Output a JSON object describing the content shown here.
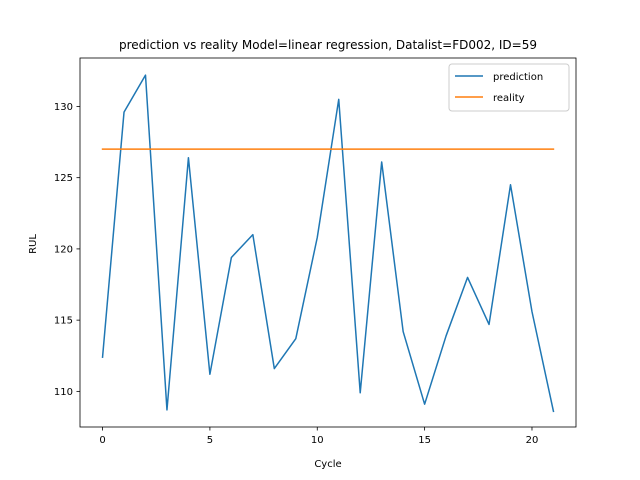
{
  "chart_data": {
    "type": "line",
    "title": "prediction vs reality Model=linear regression, Datalist=FD002, ID=59",
    "xlabel": "Cycle",
    "ylabel": "RUL",
    "xlim": [
      -1.05,
      22.05
    ],
    "ylim": [
      107.5,
      133.4
    ],
    "xticks": [
      0,
      5,
      10,
      15,
      20
    ],
    "yticks": [
      110,
      115,
      120,
      125,
      130
    ],
    "grid": false,
    "legend": "top-right",
    "x": [
      0,
      1,
      2,
      3,
      4,
      5,
      6,
      7,
      8,
      9,
      10,
      11,
      12,
      13,
      14,
      15,
      16,
      17,
      18,
      19,
      20,
      21
    ],
    "series": [
      {
        "name": "prediction",
        "color": "#1f77b4",
        "values": [
          112.4,
          129.6,
          132.2,
          108.7,
          126.4,
          111.2,
          119.4,
          121.0,
          111.6,
          113.7,
          120.8,
          130.5,
          109.9,
          126.1,
          114.2,
          109.1,
          113.9,
          118.0,
          114.7,
          124.5,
          115.6,
          108.6
        ]
      },
      {
        "name": "reality",
        "color": "#ff7f0e",
        "values": [
          127,
          127,
          127,
          127,
          127,
          127,
          127,
          127,
          127,
          127,
          127,
          127,
          127,
          127,
          127,
          127,
          127,
          127,
          127,
          127,
          127,
          127
        ]
      }
    ]
  }
}
